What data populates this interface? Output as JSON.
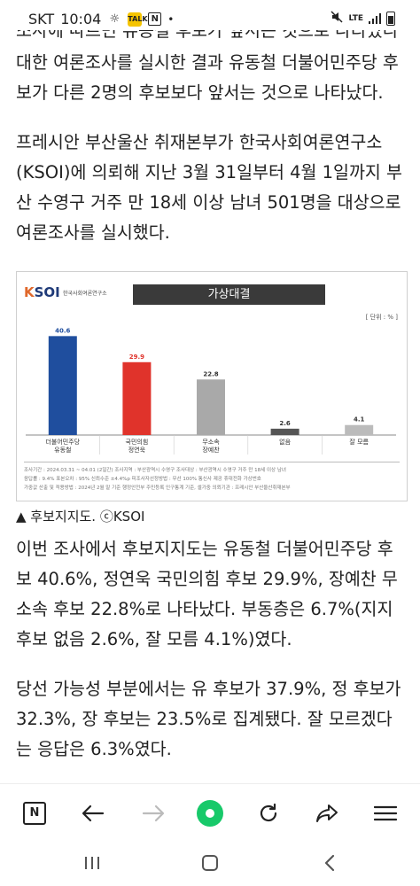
{
  "status_bar": {
    "carrier": "SKT",
    "time": "10:04",
    "network": "LTE"
  },
  "article": {
    "cut_line": "조사에 따르면 유동철 후보가 앞서는 것으로 나타났다",
    "para1": "대한 여론조사를 실시한 결과 유동철 더불어민주당 후보가 다른 2명의 후보보다 앞서는 것으로 나타났다.",
    "para2": "프레시안 부산울산 취재본부가 한국사회여론연구소(KSOI)에 의뢰해 지난 3월 31일부터 4월 1일까지 부산 수영구 거주 만 18세 이상 남녀 501명을 대상으로 여론조사를 실시했다.",
    "caption": "▲ 후보지지도. ⓒKSOI",
    "para3": "이번 조사에서 후보지지도는 유동철 더불어민주당 후보 40.6%, 정연욱 국민의힘 후보 29.9%, 장예찬 무소속 후보 22.8%로 나타났다. 부동층은 6.7%(지지후보 없음 2.6%, 잘 모름 4.1%)였다.",
    "para4": "당선 가능성 부분에서는 유 후보가 37.9%, 정 후보가 32.3%, 장 후보는 23.5%로 집계됐다. 잘 모르겠다는 응답은 6.3%였다."
  },
  "chart_image": {
    "logo_text": "KSOI",
    "logo_sub": "한국사회여론연구소",
    "title": "가상대결",
    "unit": "[ 단위 : % ]",
    "notes": [
      "조사기간 : 2024.03.31 ~ 04.01 (2일간)   조사지역 : 부산광역시 수영구   조사대상 : 부산광역시 수영구 거주 만 18세 이상 남녀",
      "응답률 : 9.4%   표본오차 : 95% 신뢰수준 ±4.4%p   피조사자선정방법 : 무선 100% 통신사 제공 휴대전화 가상번호",
      "가중값 산출 및 적용방법 : 2024년 2월 말 기준 행정안전부 주민등록 인구통계 기준, 셀가중   의뢰기관 : 프레시안 부산울산취재본부"
    ],
    "colors": {
      "dem": "#1f4e9e",
      "ppp": "#e0332b",
      "ind": "#a9a9a9",
      "none": "#555555",
      "dk": "#bbbbbb"
    },
    "chart_data": {
      "type": "bar",
      "categories": [
        [
          "더불어민주당",
          "유동철"
        ],
        [
          "국민의힘",
          "정연욱"
        ],
        [
          "무소속",
          "장예찬"
        ],
        [
          "없음"
        ],
        [
          "잘 모름"
        ]
      ],
      "values": [
        40.6,
        29.9,
        22.8,
        2.6,
        4.1
      ],
      "value_labels": [
        "40.6",
        "29.9",
        "22.8",
        "2.6",
        "4.1"
      ],
      "value_label_colors": [
        "#1f4e9e",
        "#e0332b",
        "#333333",
        "#333333",
        "#333333"
      ],
      "ylim": [
        0,
        50
      ],
      "grid": false
    }
  },
  "toolbar": {
    "n_label": "N"
  }
}
